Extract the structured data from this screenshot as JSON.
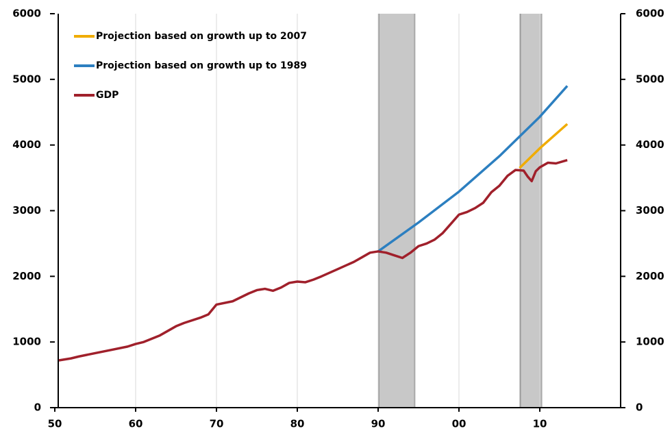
{
  "chart_data": {
    "type": "line",
    "xlim": [
      1950,
      2020
    ],
    "ylim": [
      0,
      6000
    ],
    "y2lim": [
      0,
      6000
    ],
    "xticks": [
      {
        "value": 1950,
        "label": "50"
      },
      {
        "value": 1960,
        "label": "60"
      },
      {
        "value": 1970,
        "label": "70"
      },
      {
        "value": 1980,
        "label": "80"
      },
      {
        "value": 1990,
        "label": "90"
      },
      {
        "value": 2000,
        "label": "00"
      },
      {
        "value": 2010,
        "label": "10"
      }
    ],
    "yticks": [
      0,
      1000,
      2000,
      3000,
      4000,
      5000,
      6000
    ],
    "y2ticks": [
      0,
      1000,
      2000,
      3000,
      4000,
      5000,
      6000
    ],
    "grid": true,
    "legend": "upper left",
    "shaded_periods": [
      [
        1990,
        1994.6
      ],
      [
        2007.5,
        2010.3
      ]
    ],
    "series": [
      {
        "name": "Projection based on growth up to 2007",
        "color": "#f0ac00",
        "x": [
          2007.5,
          2010,
          2013.4
        ],
        "values": [
          3650,
          3950,
          4320
        ]
      },
      {
        "name": "Projection based on growth up to 1989",
        "color": "#2c7fc0",
        "x": [
          1990,
          1995,
          2000,
          2005,
          2010,
          2013.4
        ],
        "values": [
          2380,
          2820,
          3290,
          3830,
          4430,
          4900
        ]
      },
      {
        "name": "GDP",
        "color": "#a0202b",
        "x": [
          1950.5,
          1952,
          1953,
          1955,
          1957,
          1959,
          1960,
          1961,
          1963,
          1965,
          1966,
          1968,
          1969,
          1970,
          1972,
          1974,
          1975,
          1976,
          1977,
          1978,
          1979,
          1980,
          1981,
          1982,
          1983,
          1985,
          1987,
          1988,
          1989,
          1990,
          1991,
          1992,
          1993,
          1994,
          1995,
          1996,
          1997,
          1998,
          1999,
          2000,
          2001,
          2002,
          2003,
          2004,
          2005,
          2006,
          2007,
          2008,
          2008.5,
          2009,
          2009.5,
          2010,
          2011,
          2012,
          2013.4
        ],
        "values": [
          720,
          750,
          780,
          830,
          880,
          930,
          970,
          1000,
          1100,
          1240,
          1290,
          1370,
          1420,
          1570,
          1620,
          1740,
          1790,
          1810,
          1780,
          1830,
          1900,
          1920,
          1910,
          1950,
          2000,
          2110,
          2220,
          2290,
          2360,
          2380,
          2360,
          2320,
          2280,
          2360,
          2460,
          2500,
          2560,
          2660,
          2800,
          2940,
          2980,
          3040,
          3120,
          3280,
          3380,
          3530,
          3620,
          3610,
          3520,
          3450,
          3600,
          3660,
          3730,
          3720,
          3770
        ]
      }
    ]
  }
}
